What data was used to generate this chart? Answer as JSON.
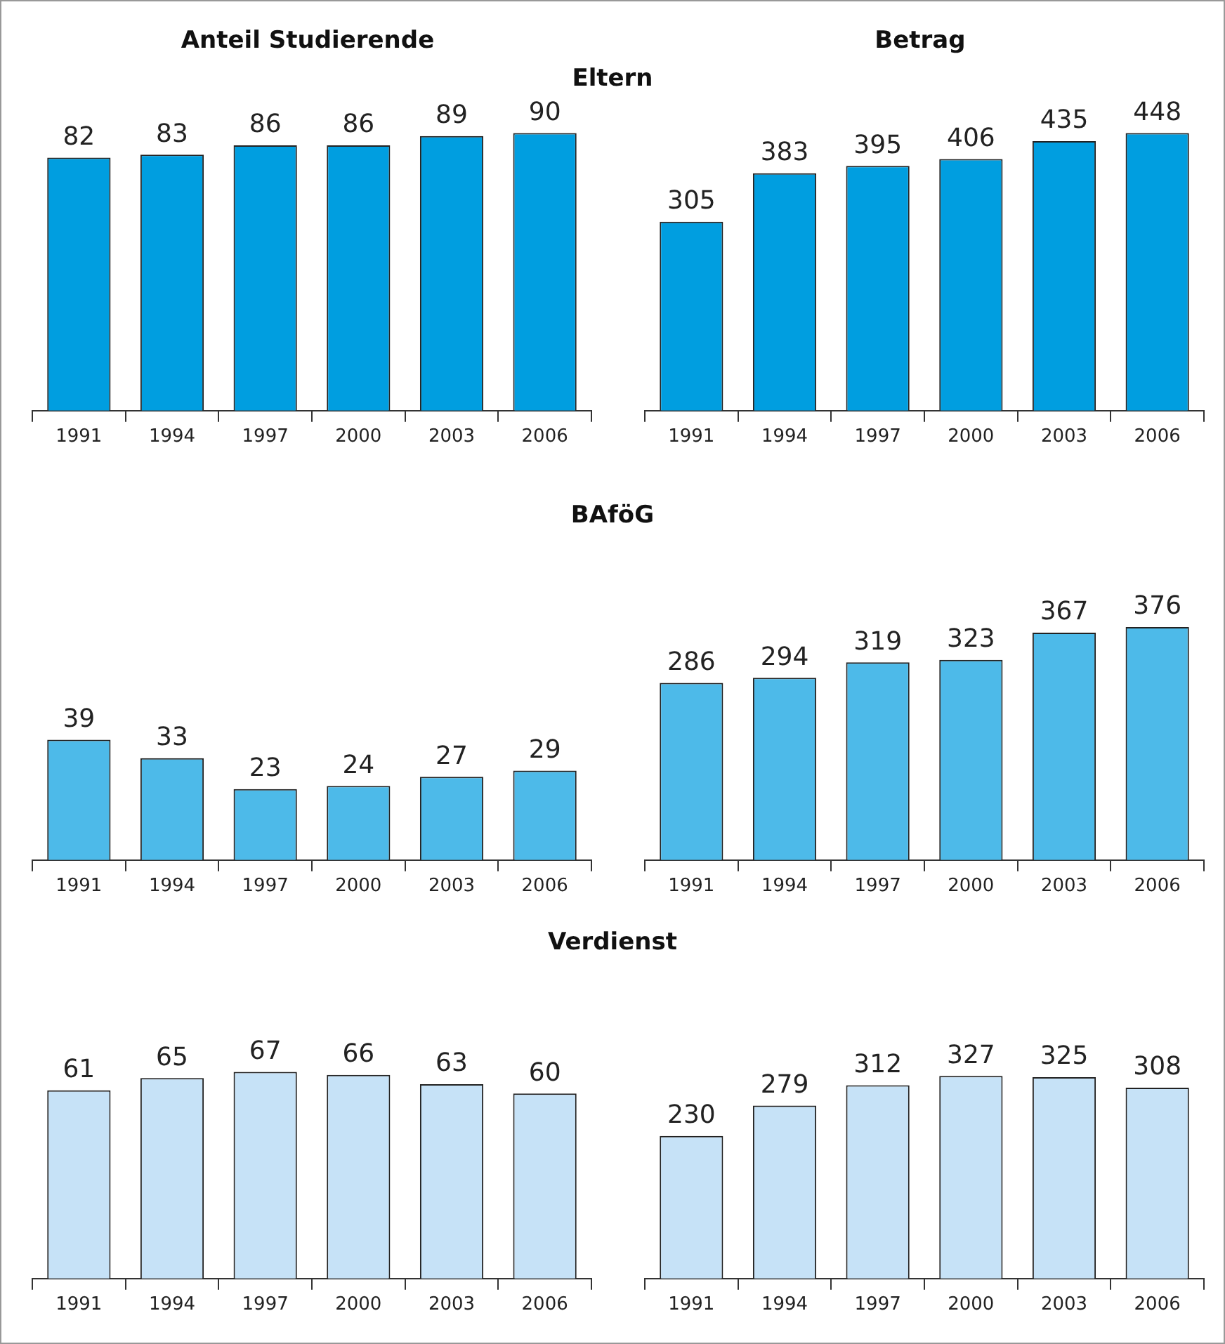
{
  "chart_data": [
    {
      "type": "bar",
      "title": "Anteil Studierende",
      "subtitle": "Eltern",
      "categories": [
        "1991",
        "1994",
        "1997",
        "2000",
        "2003",
        "2006"
      ],
      "values": [
        82,
        83,
        86,
        86,
        89,
        90
      ],
      "color": "#009ee0",
      "data_labels": true
    },
    {
      "type": "bar",
      "title": "Betrag",
      "categories": [
        "1991",
        "1994",
        "1997",
        "2000",
        "2003",
        "2006"
      ],
      "values": [
        305,
        383,
        395,
        406,
        435,
        448
      ],
      "color": "#009ee0",
      "data_labels": true
    },
    {
      "type": "bar",
      "subtitle": "BAföG",
      "categories": [
        "1991",
        "1994",
        "1997",
        "2000",
        "2003",
        "2006"
      ],
      "values": [
        39,
        33,
        23,
        24,
        27,
        29
      ],
      "color": "#4dbae9",
      "data_labels": true
    },
    {
      "type": "bar",
      "categories": [
        "1991",
        "1994",
        "1997",
        "2000",
        "2003",
        "2006"
      ],
      "values": [
        286,
        294,
        319,
        323,
        367,
        376
      ],
      "color": "#4dbae9",
      "data_labels": true
    },
    {
      "type": "bar",
      "subtitle": "Verdienst",
      "categories": [
        "1991",
        "1994",
        "1997",
        "2000",
        "2003",
        "2006"
      ],
      "values": [
        61,
        65,
        67,
        66,
        63,
        60
      ],
      "color": "#c6e2f7",
      "data_labels": true
    },
    {
      "type": "bar",
      "categories": [
        "1991",
        "1994",
        "1997",
        "2000",
        "2003",
        "2006"
      ],
      "values": [
        230,
        279,
        312,
        327,
        325,
        308
      ],
      "color": "#c6e2f7",
      "data_labels": true
    }
  ]
}
